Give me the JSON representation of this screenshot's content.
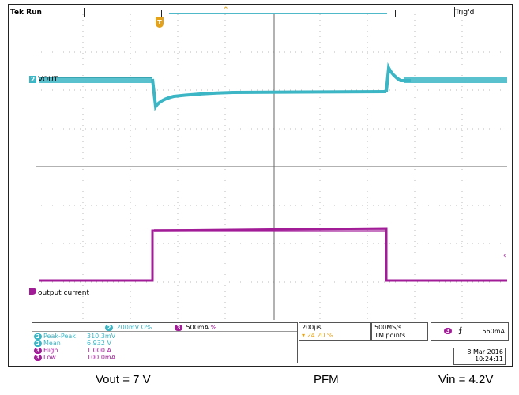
{
  "status": {
    "run_state": "Tek Run",
    "trigger_state": "Trig'd"
  },
  "channels": {
    "ch2": {
      "number": "2",
      "label": "VOUT",
      "scale": "200mV",
      "coupling": "Ω%",
      "color": "#3cb5c4"
    },
    "ch3": {
      "number": "3",
      "label": "output current",
      "scale": "500mA",
      "coupling": "%",
      "color": "#a21c98"
    }
  },
  "measurements": [
    {
      "channel": "2",
      "name": "Peak-Peak",
      "value": "310.3mV"
    },
    {
      "channel": "2",
      "name": "Mean",
      "value": "6.932 V"
    },
    {
      "channel": "3",
      "name": "High",
      "value": "1.000 A"
    },
    {
      "channel": "3",
      "name": "Low",
      "value": "100.0mA"
    }
  ],
  "timebase": {
    "time_per_div": "200μs",
    "trigger_position": "24.20 %",
    "position_icon": "T"
  },
  "acquisition": {
    "sample_rate": "500MS/s",
    "record_length": "1M points"
  },
  "trigger": {
    "source": "3",
    "slope_icon": "rising-edge",
    "level": "560mA"
  },
  "datetime": {
    "date": "8 Mar 2016",
    "time": "10:24:11"
  },
  "captions": {
    "left": "Vout = 7 V",
    "center": "PFM",
    "right": "Vin = 4.2V"
  },
  "colors": {
    "vout": "#3cb5c4",
    "current": "#a21c98",
    "trigger": "#e3a21a"
  }
}
